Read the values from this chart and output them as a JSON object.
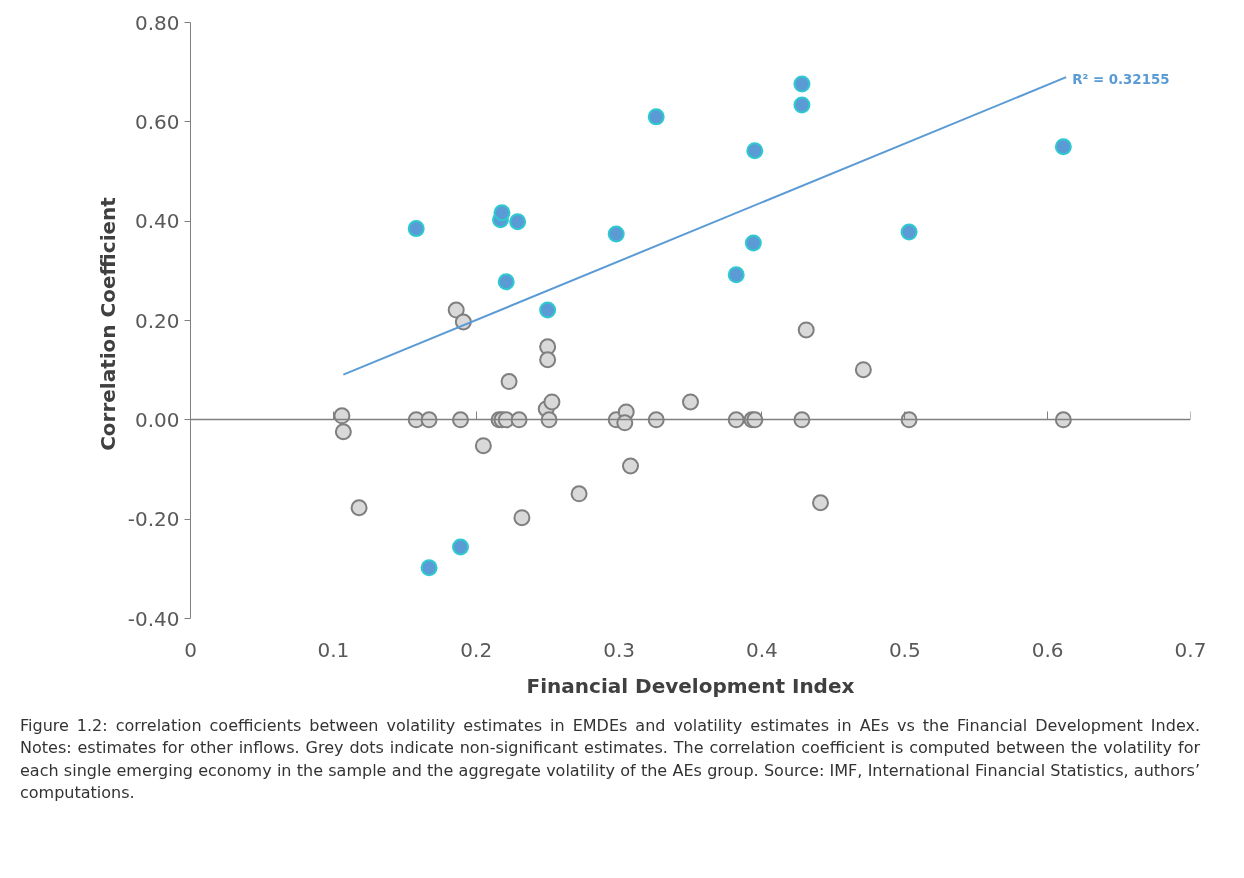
{
  "chart_data": {
    "type": "scatter",
    "xlabel": "Financial Development Index",
    "ylabel": "Correlation  Coefficient",
    "xlim": [
      0,
      0.7
    ],
    "ylim": [
      -0.4,
      0.8
    ],
    "xticks": [
      0,
      0.1,
      0.2,
      0.3,
      0.4,
      0.5,
      0.6,
      0.7
    ],
    "yticks": [
      {
        "value": -0.4,
        "label": "-0.40"
      },
      {
        "value": -0.2,
        "label": "-0.20"
      },
      {
        "value": 0,
        "label": "0.00"
      },
      {
        "value": 0.2,
        "label": "0.20"
      },
      {
        "value": 0.4,
        "label": "0.40"
      },
      {
        "value": 0.6,
        "label": "0.60"
      },
      {
        "value": 0.8,
        "label": "0.80"
      }
    ],
    "marker": "circle",
    "series": [
      {
        "type": "scatter",
        "color": "#d9d9d9",
        "x": [
          0.106,
          0.107,
          0.118,
          0.158,
          0.167,
          0.186,
          0.189,
          0.191,
          0.205,
          0.216,
          0.218,
          0.221,
          0.223,
          0.23,
          0.232,
          0.249,
          0.25,
          0.25,
          0.251,
          0.253,
          0.272,
          0.298,
          0.305,
          0.304,
          0.308,
          0.326,
          0.35,
          0.382,
          0.393,
          0.395,
          0.428,
          0.431,
          0.441,
          0.471,
          0.503,
          0.611
        ],
        "values": [
          0.008,
          -0.024,
          -0.177,
          0,
          0,
          0.221,
          0,
          0.197,
          -0.052,
          0,
          0,
          0,
          0.077,
          0,
          -0.197,
          0.022,
          0.147,
          0.121,
          0,
          0.036,
          -0.149,
          0,
          0.016,
          -0.006,
          -0.093,
          0,
          0.036,
          0,
          0,
          0,
          0,
          0.181,
          -0.167,
          0.101,
          0,
          0
        ]
      },
      {
        "type": "scatter",
        "color": "#5b9bd5",
        "x": [
          0.158,
          0.217,
          0.218,
          0.229,
          0.221,
          0.25,
          0.298,
          0.326,
          0.382,
          0.394,
          0.395,
          0.428,
          0.428,
          0.503,
          0.611,
          0.189,
          0.167
        ],
        "values": [
          0.385,
          0.403,
          0.417,
          0.399,
          0.278,
          0.221,
          0.374,
          0.61,
          0.292,
          0.356,
          0.542,
          0.676,
          0.634,
          0.378,
          0.55,
          -0.256,
          -0.298
        ]
      },
      {
        "type": "line",
        "color": "#5b9bd5",
        "marker": "none",
        "x": [
          0.107,
          0.613
        ],
        "values": [
          0.091,
          0.69
        ]
      }
    ],
    "annotations": [
      {
        "text": "R² = 0.32155",
        "x": 0.613,
        "y": 0.69
      },
      "Figure 1.2: correlation coefficients between volatility estimates in EMDEs and volatility estimates in AEs vs the Financial Development Index. Notes: estimates for other inflows. Grey dots indicate non-significant estimates. The correlation coefficient is computed between the volatility for each single emerging economy in the sample and the aggregate volatility of the AEs group. Source: IMF, International Financial Statistics, authors’ computations."
    ]
  }
}
